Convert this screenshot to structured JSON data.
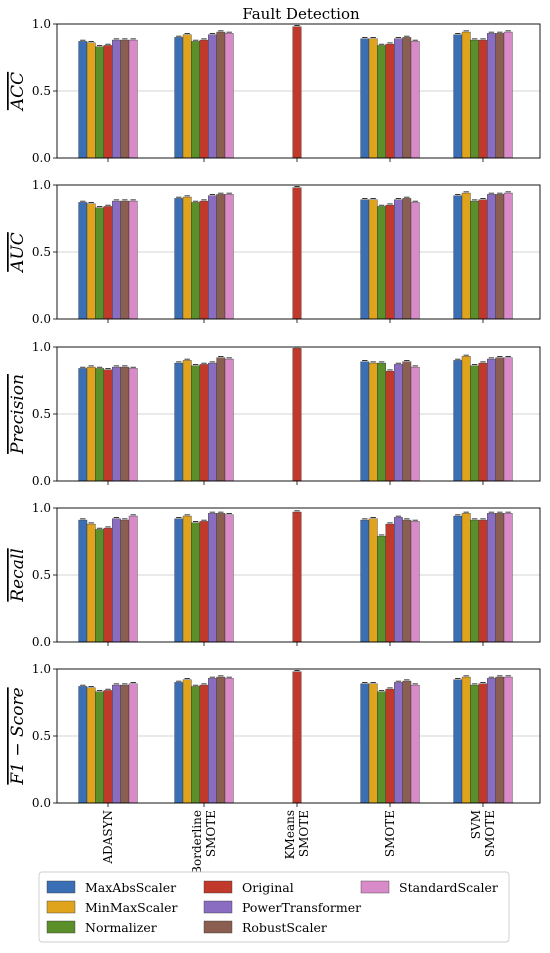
{
  "chart_data": {
    "type": "bar",
    "title": "Fault Detection",
    "categories": [
      "ADASYN",
      "Borderline\nSMOTE",
      "KMeans\nSMOTE",
      "SMOTE",
      "SVM\nSMOTE"
    ],
    "scalers": [
      "MaxAbsScaler",
      "MinMaxScaler",
      "Normalizer",
      "Original",
      "PowerTransformer",
      "RobustScaler",
      "StandardScaler"
    ],
    "colors": {
      "MaxAbsScaler": "#3a6fb5",
      "MinMaxScaler": "#e0a31c",
      "Normalizer": "#5a8f2a",
      "Original": "#c0392b",
      "PowerTransformer": "#8a6cc0",
      "RobustScaler": "#8b5e52",
      "StandardScaler": "#d98bc9"
    },
    "legend_placement": "bottom",
    "ylim": [
      0,
      1.0
    ],
    "yticks": [
      "0.0",
      "0.5",
      "1.0"
    ],
    "grid": true,
    "panels": [
      {
        "ylabel": "ACC",
        "series": {
          "MaxAbsScaler": [
            0.87,
            0.9,
            0.0,
            0.89,
            0.92
          ],
          "MinMaxScaler": [
            0.86,
            0.92,
            0.0,
            0.89,
            0.94
          ],
          "Normalizer": [
            0.83,
            0.87,
            0.0,
            0.84,
            0.88
          ],
          "Original": [
            0.84,
            0.88,
            0.98,
            0.85,
            0.88
          ],
          "PowerTransformer": [
            0.88,
            0.92,
            0.0,
            0.89,
            0.93
          ],
          "RobustScaler": [
            0.88,
            0.94,
            0.0,
            0.9,
            0.93
          ],
          "StandardScaler": [
            0.88,
            0.93,
            0.0,
            0.87,
            0.94
          ]
        }
      },
      {
        "ylabel": "AUC",
        "series": {
          "MaxAbsScaler": [
            0.87,
            0.9,
            0.0,
            0.89,
            0.92
          ],
          "MinMaxScaler": [
            0.86,
            0.91,
            0.0,
            0.89,
            0.94
          ],
          "Normalizer": [
            0.83,
            0.87,
            0.0,
            0.84,
            0.88
          ],
          "Original": [
            0.84,
            0.88,
            0.98,
            0.85,
            0.89
          ],
          "PowerTransformer": [
            0.88,
            0.92,
            0.0,
            0.89,
            0.93
          ],
          "RobustScaler": [
            0.88,
            0.93,
            0.0,
            0.9,
            0.93
          ],
          "StandardScaler": [
            0.88,
            0.93,
            0.0,
            0.87,
            0.94
          ]
        }
      },
      {
        "ylabel": "Precision",
        "series": {
          "MaxAbsScaler": [
            0.84,
            0.88,
            0.0,
            0.89,
            0.9
          ],
          "MinMaxScaler": [
            0.85,
            0.9,
            0.0,
            0.88,
            0.93
          ],
          "Normalizer": [
            0.84,
            0.86,
            0.0,
            0.88,
            0.86
          ],
          "Original": [
            0.83,
            0.87,
            0.99,
            0.82,
            0.88
          ],
          "PowerTransformer": [
            0.85,
            0.88,
            0.0,
            0.87,
            0.91
          ],
          "RobustScaler": [
            0.85,
            0.92,
            0.0,
            0.89,
            0.92
          ],
          "StandardScaler": [
            0.84,
            0.91,
            0.0,
            0.85,
            0.92
          ]
        }
      },
      {
        "ylabel": "Recall",
        "series": {
          "MaxAbsScaler": [
            0.91,
            0.92,
            0.0,
            0.91,
            0.94
          ],
          "MinMaxScaler": [
            0.88,
            0.94,
            0.0,
            0.92,
            0.96
          ],
          "Normalizer": [
            0.84,
            0.89,
            0.0,
            0.79,
            0.91
          ],
          "Original": [
            0.85,
            0.9,
            0.97,
            0.88,
            0.91
          ],
          "PowerTransformer": [
            0.92,
            0.96,
            0.0,
            0.93,
            0.96
          ],
          "RobustScaler": [
            0.91,
            0.96,
            0.0,
            0.91,
            0.96
          ],
          "StandardScaler": [
            0.94,
            0.95,
            0.0,
            0.9,
            0.96
          ]
        }
      },
      {
        "ylabel": "F1 − Score",
        "series": {
          "MaxAbsScaler": [
            0.87,
            0.9,
            0.0,
            0.89,
            0.92
          ],
          "MinMaxScaler": [
            0.86,
            0.92,
            0.0,
            0.89,
            0.94
          ],
          "Normalizer": [
            0.83,
            0.87,
            0.0,
            0.83,
            0.88
          ],
          "Original": [
            0.84,
            0.88,
            0.98,
            0.85,
            0.89
          ],
          "PowerTransformer": [
            0.88,
            0.93,
            0.0,
            0.9,
            0.93
          ],
          "RobustScaler": [
            0.88,
            0.94,
            0.0,
            0.91,
            0.94
          ],
          "StandardScaler": [
            0.89,
            0.93,
            0.0,
            0.88,
            0.94
          ]
        }
      }
    ]
  }
}
